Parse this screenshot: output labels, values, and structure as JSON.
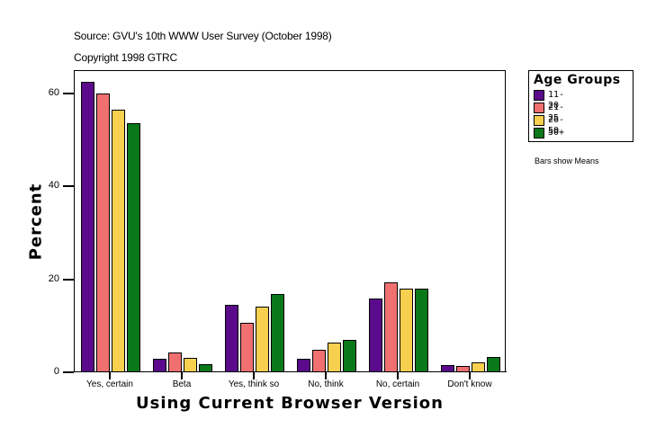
{
  "header": {
    "source": "Source: GVU's 10th WWW User Survey (October 1998)",
    "copyright": "Copyright 1998 GTRC"
  },
  "legend": {
    "title": "Age Groups",
    "items": [
      {
        "label": "11-20",
        "color": "#5c0a8c"
      },
      {
        "label": "21-25",
        "color": "#f07070"
      },
      {
        "label": "26-50",
        "color": "#f8d050"
      },
      {
        "label": "50+",
        "color": "#087818"
      }
    ]
  },
  "note": "Bars show Means",
  "axes": {
    "ylabel": "Percent",
    "xlabel": "Using Current Browser Version",
    "yticks": [
      "0",
      "20",
      "40",
      "60"
    ]
  },
  "chart_data": {
    "type": "bar",
    "title": "",
    "xlabel": "Using Current Browser Version",
    "ylabel": "Percent",
    "ylim": [
      0,
      65
    ],
    "grid": false,
    "legend_position": "right",
    "legend_title": "Age Groups",
    "categories": [
      "Yes, certain",
      "Beta",
      "Yes, think so",
      "No, think",
      "No, certain",
      "Don't know"
    ],
    "series": [
      {
        "name": "11-20",
        "color": "#5c0a8c",
        "values": [
          62.5,
          2.9,
          14.5,
          2.9,
          15.8,
          1.5
        ]
      },
      {
        "name": "21-25",
        "color": "#f07070",
        "values": [
          60.0,
          4.2,
          10.6,
          4.8,
          19.3,
          1.3
        ]
      },
      {
        "name": "26-50",
        "color": "#f8d050",
        "values": [
          56.5,
          3.0,
          14.2,
          6.3,
          18.0,
          2.1
        ]
      },
      {
        "name": "50+",
        "color": "#087818",
        "values": [
          53.5,
          1.7,
          16.9,
          6.9,
          18.0,
          3.2
        ]
      }
    ],
    "annotations": [
      "Source: GVU's 10th WWW User Survey (October 1998)",
      "Copyright 1998 GTRC",
      "Bars show Means"
    ]
  }
}
